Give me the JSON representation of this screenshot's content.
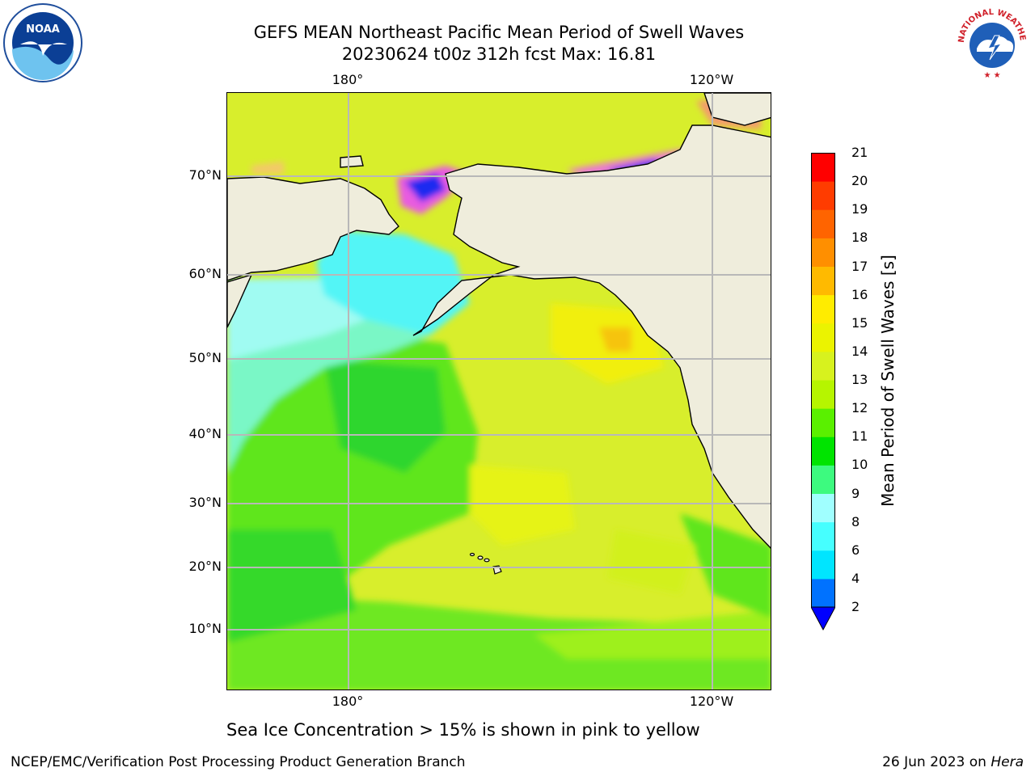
{
  "title": {
    "line1": "GEFS MEAN Northeast Pacific Mean Period of Swell Waves",
    "line2": "20230624 t00z 312h fcst   Max: 16.81"
  },
  "map": {
    "lon_ticks": [
      "180°",
      "120°W"
    ],
    "lat_ticks": [
      "70°N",
      "60°N",
      "50°N",
      "40°N",
      "30°N",
      "20°N",
      "10°N"
    ],
    "land_color": "#efeddc",
    "ocean_dominant_color": "#d8ee2c"
  },
  "colorbar": {
    "title": "Mean Period of Swell Waves [s]",
    "levels": [
      "2",
      "4",
      "6",
      "8",
      "9",
      "10",
      "11",
      "12",
      "13",
      "14",
      "15",
      "16",
      "17",
      "18",
      "19",
      "20",
      "21"
    ],
    "colors": [
      "#0072ff",
      "#00e5ff",
      "#46ffff",
      "#a0ffff",
      "#3dfa7f",
      "#00e400",
      "#5af000",
      "#b6f500",
      "#d7f21e",
      "#ebf300",
      "#ffec00",
      "#ffba00",
      "#ff8f00",
      "#ff6400",
      "#ff3c00",
      "#ff0000"
    ],
    "under_color": "#0000ff"
  },
  "footnote": "Sea Ice Concentration > 15% is shown in pink to yellow",
  "credits": {
    "left": "NCEP/EMC/Verification Post Processing Product Generation Branch",
    "right_prefix": "26 Jun 2023 on ",
    "right_host": "Hera"
  },
  "logos": {
    "noaa_text": "NOAA",
    "nws_text": "NATIONAL WEATHER SERVICE"
  }
}
